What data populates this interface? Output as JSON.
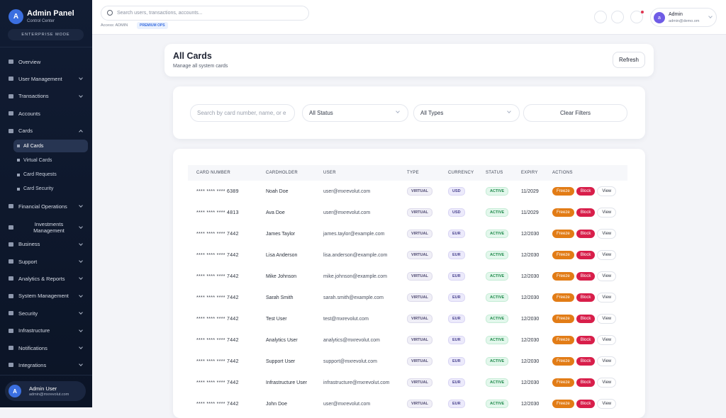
{
  "sidebar": {
    "brand": {
      "avatar": "A",
      "title": "Admin Panel",
      "subtitle": "Control Center"
    },
    "mode": "ENTERPRISE MODE",
    "nav": [
      {
        "label": "Overview",
        "submenu": false
      },
      {
        "label": "User Management",
        "submenu": true
      },
      {
        "label": "Transactions",
        "submenu": true
      },
      {
        "label": "Accounts",
        "submenu": false
      },
      {
        "label": "Cards",
        "submenu": true,
        "expanded": true,
        "children": [
          {
            "label": "All Cards",
            "active": true
          },
          {
            "label": "Virtual Cards"
          },
          {
            "label": "Card Requests"
          },
          {
            "label": "Card Security"
          }
        ]
      },
      {
        "label": "Financial Operations",
        "submenu": true
      },
      {
        "label": "Investments Management",
        "submenu": true
      },
      {
        "label": "Business",
        "submenu": true
      },
      {
        "label": "Support",
        "submenu": true
      },
      {
        "label": "Analytics & Reports",
        "submenu": true
      },
      {
        "label": "System Management",
        "submenu": true
      },
      {
        "label": "Security",
        "submenu": true
      },
      {
        "label": "Infrastructure",
        "submenu": true
      },
      {
        "label": "Notifications",
        "submenu": true
      },
      {
        "label": "Integrations",
        "submenu": true
      }
    ],
    "user": {
      "avatar": "A",
      "name": "Admin User",
      "email": "admin@mxrevolut.com"
    }
  },
  "topbar": {
    "search": "Search users, transactions, accounts...",
    "access": "Access: ADMIN",
    "badge": "PREMIUM OPS",
    "profile": {
      "avatar": "a",
      "name": "Admin",
      "email": "admin@demo.om"
    }
  },
  "header": {
    "title": "All Cards",
    "subtitle": "Manage all system cards",
    "refresh": "Refresh"
  },
  "filters": {
    "search": "Search by card number, name, or e",
    "status": "All Status",
    "types": "All Types",
    "clear": "Clear Filters"
  },
  "table": {
    "columns": [
      "CARD NUMBER",
      "CARDHOLDER",
      "USER",
      "TYPE",
      "CURRENCY",
      "STATUS",
      "EXPIRY",
      "ACTIONS"
    ],
    "actions": [
      "Freeze",
      "Block",
      "View"
    ],
    "rows": [
      [
        "****  ****  ****  6389",
        "Noah Doe",
        "user@mxrevolut.com",
        "VIRTUAL",
        "USD",
        "ACTIVE",
        "11/2029"
      ],
      [
        "****  ****  ****  4813",
        "Ava Doe",
        "user@mxrevolut.com",
        "VIRTUAL",
        "USD",
        "ACTIVE",
        "11/2029"
      ],
      [
        "****  ****  ****  7442",
        "James Taylor",
        "james.taylor@example.com",
        "VIRTUAL",
        "EUR",
        "ACTIVE",
        "12/2030"
      ],
      [
        "****  ****  ****  7442",
        "Lisa Anderson",
        "lisa.anderson@example.com",
        "VIRTUAL",
        "EUR",
        "ACTIVE",
        "12/2030"
      ],
      [
        "****  ****  ****  7442",
        "Mike Johnson",
        "mike.johnson@example.com",
        "VIRTUAL",
        "EUR",
        "ACTIVE",
        "12/2030"
      ],
      [
        "****  ****  ****  7442",
        "Sarah Smith",
        "sarah.smith@example.com",
        "VIRTUAL",
        "EUR",
        "ACTIVE",
        "12/2030"
      ],
      [
        "****  ****  ****  7442",
        "Test User",
        "test@mxrevolut.com",
        "VIRTUAL",
        "EUR",
        "ACTIVE",
        "12/2030"
      ],
      [
        "****  ****  ****  7442",
        "Analytics User",
        "analytics@mxrevolut.com",
        "VIRTUAL",
        "EUR",
        "ACTIVE",
        "12/2030"
      ],
      [
        "****  ****  ****  7442",
        "Support User",
        "support@mxrevolut.com",
        "VIRTUAL",
        "EUR",
        "ACTIVE",
        "12/2030"
      ],
      [
        "****  ****  ****  7442",
        "Infrastructure User",
        "infrastructure@mxrevolut.com",
        "VIRTUAL",
        "EUR",
        "ACTIVE",
        "12/2030"
      ],
      [
        "****  ****  ****  7442",
        "John Doe",
        "user@mxrevolut.com",
        "VIRTUAL",
        "EUR",
        "ACTIVE",
        "12/2030"
      ]
    ]
  }
}
